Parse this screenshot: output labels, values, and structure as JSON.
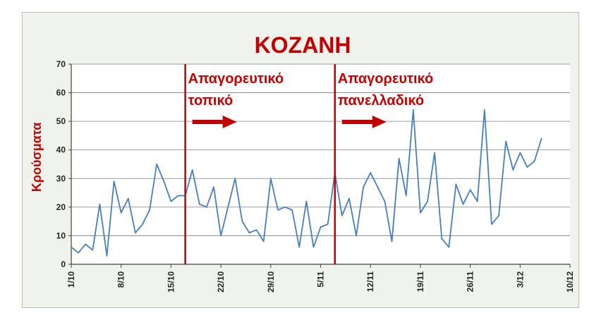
{
  "colors": {
    "frame_bg": "#f0f3ec",
    "plot_bg": "#ffffff",
    "grid": "#7f7f7f",
    "series": "#4a7ebb",
    "accent_red": "#c00000"
  },
  "chart_data": {
    "type": "line",
    "title": "KOZANH",
    "xlabel": "",
    "ylabel": "Κρούσματα",
    "ylim": [
      0,
      70
    ],
    "yticks": [
      0,
      10,
      20,
      30,
      40,
      50,
      60,
      70
    ],
    "grid": true,
    "legend": "none",
    "x_start_label": "1/10",
    "xtick_labels": [
      "1/10",
      "8/10",
      "15/10",
      "22/10",
      "29/10",
      "5/11",
      "12/11",
      "19/11",
      "26/11",
      "3/12",
      "10/12"
    ],
    "series": [
      {
        "values": [
          6,
          4,
          7,
          5,
          21,
          3,
          29,
          18,
          23,
          11,
          14,
          19,
          35,
          29,
          22,
          24,
          24,
          33,
          21,
          20,
          27,
          10,
          20,
          30,
          15,
          11,
          12,
          8,
          30,
          19,
          20,
          19,
          6,
          22,
          6,
          13,
          14,
          32,
          17,
          23,
          10,
          27,
          32,
          27,
          22,
          8,
          37,
          24,
          54,
          18,
          22,
          39,
          9,
          6,
          28,
          21,
          26,
          22,
          54,
          14,
          17,
          43,
          33,
          39,
          34,
          36,
          44
        ]
      }
    ],
    "annotations": [
      {
        "line1": "Απαγορευτικό",
        "line2": "τοπικό",
        "x_index": 16
      },
      {
        "line1": "Απαγορευτικό",
        "line2": "πανελλαδικό",
        "x_index": 37
      }
    ]
  }
}
